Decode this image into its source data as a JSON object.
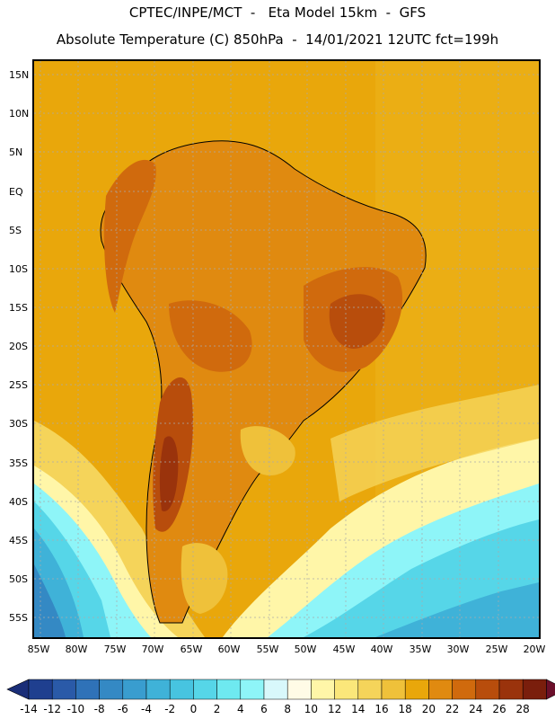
{
  "header": {
    "title_line1": "CPTEC/INPE/MCT  -   Eta Model 15km  -  GFS",
    "title_line2": "Absolute Temperature (C) 850hPa  -  14/01/2021 12UTC fct=199h"
  },
  "axes": {
    "lat_labels": [
      "15N",
      "10N",
      "5N",
      "EQ",
      "5S",
      "10S",
      "15S",
      "20S",
      "25S",
      "30S",
      "35S",
      "40S",
      "45S",
      "50S",
      "55S"
    ],
    "lon_labels": [
      "85W",
      "80W",
      "75W",
      "70W",
      "65W",
      "60W",
      "55W",
      "50W",
      "45W",
      "40W",
      "35W",
      "30W",
      "25W",
      "20W"
    ]
  },
  "colorbar": {
    "labels": [
      "-14",
      "-12",
      "-10",
      "-8",
      "-6",
      "-4",
      "-2",
      "0",
      "2",
      "4",
      "6",
      "8",
      "10",
      "12",
      "14",
      "16",
      "18",
      "20",
      "22",
      "24",
      "26",
      "28"
    ],
    "colors": [
      "#1f3f8f",
      "#2a5aa8",
      "#2f72b8",
      "#3489c4",
      "#399dcf",
      "#3fb2d8",
      "#47c4e0",
      "#56d6e8",
      "#6ee9f0",
      "#8ef5f8",
      "#d8f8fb",
      "#fffbe6",
      "#fff6a8",
      "#fbe77a",
      "#f5d45a",
      "#efc13a",
      "#e9a70b",
      "#e08a10",
      "#d06a0d",
      "#b84d0c",
      "#9a330c",
      "#7a1e0c"
    ],
    "end_low_color": "#1a2e78",
    "end_high_color": "#6b0f2a"
  }
}
